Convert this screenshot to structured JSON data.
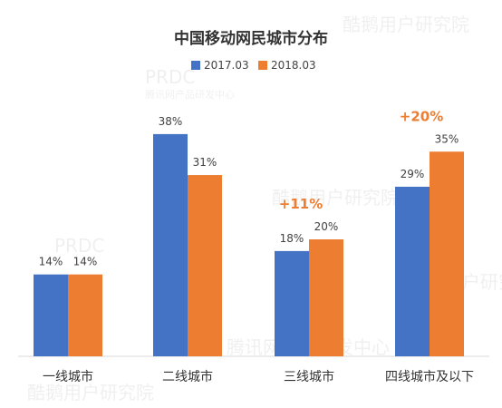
{
  "chart_data": {
    "type": "bar",
    "title": "中国移动网民城市分布",
    "xlabel": "",
    "ylabel": "",
    "ylim": [
      0,
      40
    ],
    "grid": false,
    "legend_position": "top",
    "categories": [
      "一线城市",
      "二线城市",
      "三线城市",
      "四线城市及以下"
    ],
    "series": [
      {
        "name": "2017.03",
        "color": "#4472C4",
        "values": [
          14,
          38,
          18,
          29
        ],
        "labels": [
          "14%",
          "38%",
          "18%",
          "29%"
        ]
      },
      {
        "name": "2018.03",
        "color": "#ED7D31",
        "values": [
          14,
          31,
          20,
          35
        ],
        "labels": [
          "14%",
          "31%",
          "20%",
          "35%"
        ]
      }
    ],
    "annotations": [
      {
        "category": "三线城市",
        "text": "+11%"
      },
      {
        "category": "四线城市及以下",
        "text": "+20%"
      }
    ]
  },
  "watermarks": [
    "酷鹅用户研究院",
    "PRDC",
    "腾讯网产品研发中心"
  ]
}
